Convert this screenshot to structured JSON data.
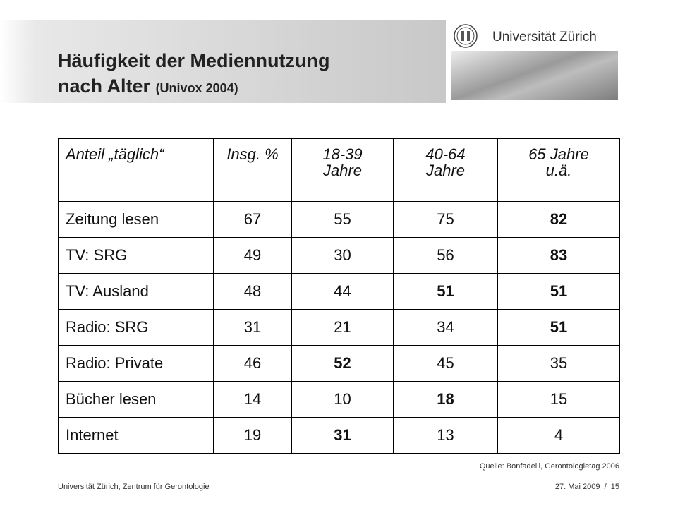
{
  "header": {
    "title_line1": "Häufigkeit der Mediennutzung",
    "title_line2": "nach Alter",
    "title_note": "(Univox 2004)",
    "logo_text": "Universität Zürich"
  },
  "table": {
    "columns": [
      [
        "Anteil „täglich“"
      ],
      [
        "Insg. %"
      ],
      [
        "18-39",
        "Jahre"
      ],
      [
        "40-64",
        "Jahre"
      ],
      [
        "65 Jahre",
        "u.ä."
      ]
    ],
    "rows": [
      {
        "label": "Zeitung lesen",
        "values": [
          67,
          55,
          75,
          82
        ],
        "bold": [
          false,
          false,
          false,
          true
        ]
      },
      {
        "label": "TV: SRG",
        "values": [
          49,
          30,
          56,
          83
        ],
        "bold": [
          false,
          false,
          false,
          true
        ]
      },
      {
        "label": "TV: Ausland",
        "values": [
          48,
          44,
          51,
          51
        ],
        "bold": [
          false,
          false,
          true,
          true
        ]
      },
      {
        "label": "Radio: SRG",
        "values": [
          31,
          21,
          34,
          51
        ],
        "bold": [
          false,
          false,
          false,
          true
        ]
      },
      {
        "label": "Radio: Private",
        "values": [
          46,
          52,
          45,
          35
        ],
        "bold": [
          false,
          true,
          false,
          false
        ]
      },
      {
        "label": "Bücher lesen",
        "values": [
          14,
          10,
          18,
          15
        ],
        "bold": [
          false,
          false,
          true,
          false
        ]
      },
      {
        "label": "Internet",
        "values": [
          19,
          31,
          13,
          4
        ],
        "bold": [
          false,
          true,
          false,
          false
        ]
      }
    ]
  },
  "footer": {
    "source": "Quelle: Bonfadelli, Gerontologietag 2006",
    "left": "Universität Zürich, Zentrum für Gerontologie",
    "right": "27. Mai 2009  /  15"
  }
}
